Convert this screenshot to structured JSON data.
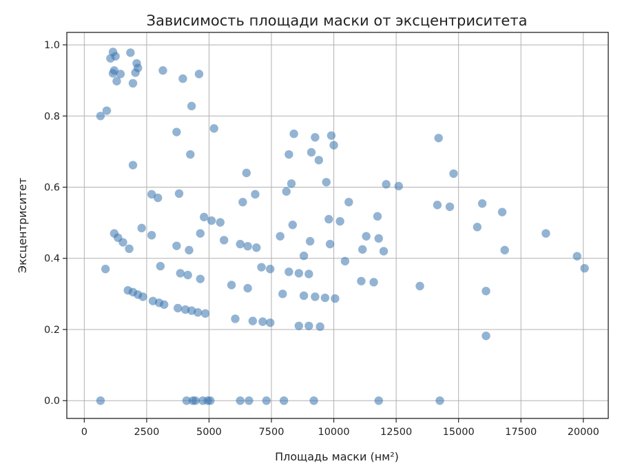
{
  "chart_data": {
    "type": "scatter",
    "title": "Зависимость площади маски от эксцентриситета",
    "xlabel": "Площадь маски (нм²)",
    "ylabel": "Эксцентриситет",
    "xlim": [
      -700,
      21000
    ],
    "ylim": [
      -0.05,
      1.035
    ],
    "xticks": [
      0,
      2500,
      5000,
      7500,
      10000,
      12500,
      15000,
      17500,
      20000
    ],
    "xtick_labels": [
      "0",
      "2500",
      "5000",
      "7500",
      "10000",
      "12500",
      "15000",
      "17500",
      "20000"
    ],
    "yticks": [
      0.0,
      0.2,
      0.4,
      0.6,
      0.8,
      1.0
    ],
    "ytick_labels": [
      "0.0",
      "0.2",
      "0.4",
      "0.6",
      "0.8",
      "1.0"
    ],
    "grid": true,
    "marker_color": "#3b75af",
    "marker_alpha": 0.55,
    "points": [
      [
        1150,
        0.98
      ],
      [
        1850,
        0.978
      ],
      [
        1250,
        0.968
      ],
      [
        1050,
        0.962
      ],
      [
        2100,
        0.948
      ],
      [
        1200,
        0.928
      ],
      [
        2150,
        0.935
      ],
      [
        1150,
        0.92
      ],
      [
        1450,
        0.918
      ],
      [
        2050,
        0.922
      ],
      [
        3150,
        0.928
      ],
      [
        3950,
        0.905
      ],
      [
        4600,
        0.918
      ],
      [
        1300,
        0.898
      ],
      [
        1950,
        0.892
      ],
      [
        4300,
        0.828
      ],
      [
        900,
        0.815
      ],
      [
        650,
        0.8
      ],
      [
        3700,
        0.755
      ],
      [
        5200,
        0.765
      ],
      [
        1950,
        0.662
      ],
      [
        4250,
        0.692
      ],
      [
        8200,
        0.692
      ],
      [
        8400,
        0.75
      ],
      [
        9250,
        0.74
      ],
      [
        9900,
        0.745
      ],
      [
        10000,
        0.718
      ],
      [
        9100,
        0.698
      ],
      [
        9400,
        0.676
      ],
      [
        14200,
        0.738
      ],
      [
        6500,
        0.64
      ],
      [
        14800,
        0.638
      ],
      [
        2700,
        0.58
      ],
      [
        2950,
        0.57
      ],
      [
        3800,
        0.582
      ],
      [
        6850,
        0.58
      ],
      [
        8300,
        0.61
      ],
      [
        8100,
        0.588
      ],
      [
        9700,
        0.614
      ],
      [
        6350,
        0.558
      ],
      [
        10600,
        0.558
      ],
      [
        12100,
        0.608
      ],
      [
        12600,
        0.603
      ],
      [
        14150,
        0.55
      ],
      [
        14650,
        0.545
      ],
      [
        15950,
        0.554
      ],
      [
        16750,
        0.53
      ],
      [
        4800,
        0.516
      ],
      [
        5100,
        0.506
      ],
      [
        5450,
        0.501
      ],
      [
        2300,
        0.485
      ],
      [
        8350,
        0.494
      ],
      [
        9800,
        0.51
      ],
      [
        10250,
        0.504
      ],
      [
        11750,
        0.518
      ],
      [
        15750,
        0.488
      ],
      [
        1200,
        0.47
      ],
      [
        1350,
        0.458
      ],
      [
        1550,
        0.445
      ],
      [
        1800,
        0.427
      ],
      [
        2700,
        0.465
      ],
      [
        3700,
        0.435
      ],
      [
        4200,
        0.423
      ],
      [
        4650,
        0.47
      ],
      [
        5600,
        0.451
      ],
      [
        6250,
        0.44
      ],
      [
        6550,
        0.434
      ],
      [
        6900,
        0.43
      ],
      [
        7850,
        0.462
      ],
      [
        8800,
        0.407
      ],
      [
        9050,
        0.448
      ],
      [
        9850,
        0.44
      ],
      [
        11150,
        0.425
      ],
      [
        11300,
        0.462
      ],
      [
        11800,
        0.456
      ],
      [
        12000,
        0.42
      ],
      [
        16850,
        0.423
      ],
      [
        18500,
        0.47
      ],
      [
        19750,
        0.406
      ],
      [
        20050,
        0.372
      ],
      [
        850,
        0.37
      ],
      [
        3050,
        0.378
      ],
      [
        7100,
        0.375
      ],
      [
        7450,
        0.37
      ],
      [
        10450,
        0.392
      ],
      [
        3850,
        0.358
      ],
      [
        4150,
        0.353
      ],
      [
        4650,
        0.342
      ],
      [
        8200,
        0.362
      ],
      [
        8600,
        0.358
      ],
      [
        9000,
        0.356
      ],
      [
        5900,
        0.325
      ],
      [
        6550,
        0.316
      ],
      [
        11100,
        0.336
      ],
      [
        11600,
        0.333
      ],
      [
        13450,
        0.322
      ],
      [
        1750,
        0.31
      ],
      [
        1950,
        0.305
      ],
      [
        2150,
        0.298
      ],
      [
        2350,
        0.292
      ],
      [
        2750,
        0.28
      ],
      [
        3000,
        0.275
      ],
      [
        3200,
        0.27
      ],
      [
        3750,
        0.26
      ],
      [
        4050,
        0.256
      ],
      [
        4300,
        0.253
      ],
      [
        4550,
        0.248
      ],
      [
        4850,
        0.245
      ],
      [
        7950,
        0.3
      ],
      [
        8800,
        0.295
      ],
      [
        9250,
        0.292
      ],
      [
        9650,
        0.289
      ],
      [
        10050,
        0.287
      ],
      [
        16100,
        0.308
      ],
      [
        6050,
        0.23
      ],
      [
        6750,
        0.224
      ],
      [
        7150,
        0.222
      ],
      [
        7450,
        0.219
      ],
      [
        8600,
        0.21
      ],
      [
        9000,
        0.21
      ],
      [
        9450,
        0.208
      ],
      [
        16100,
        0.182
      ],
      [
        650,
        0.0
      ],
      [
        4100,
        0.0
      ],
      [
        4350,
        0.0
      ],
      [
        4450,
        0.0
      ],
      [
        4750,
        0.0
      ],
      [
        4950,
        0.0
      ],
      [
        5050,
        0.0
      ],
      [
        6250,
        0.0
      ],
      [
        6600,
        0.0
      ],
      [
        7300,
        0.0
      ],
      [
        8000,
        0.0
      ],
      [
        9200,
        0.0
      ],
      [
        11800,
        0.0
      ],
      [
        14250,
        0.0
      ]
    ]
  }
}
